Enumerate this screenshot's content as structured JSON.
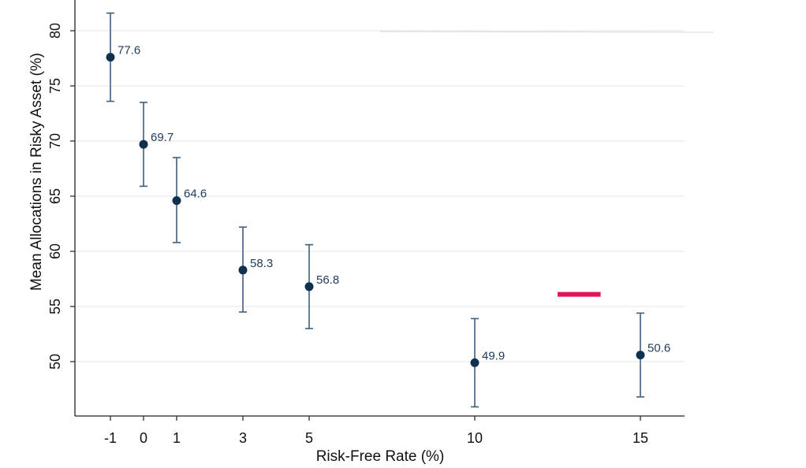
{
  "chart_data": {
    "type": "scatter",
    "title": "",
    "xlabel": "Risk-Free Rate (%)",
    "ylabel": "Mean Allocations in Risky Asset (%)",
    "x_ticks": [
      "-1",
      "0",
      "1",
      "3",
      "5",
      "10",
      "15"
    ],
    "y_ticks": [
      "50",
      "55",
      "60",
      "65",
      "70",
      "75",
      "80"
    ],
    "xlim": [
      -2.0,
      16.3
    ],
    "ylim": [
      45.0,
      82.5
    ],
    "grid": true,
    "error_bars": true,
    "points": [
      {
        "x": -1,
        "y": 77.6,
        "lo": 73.6,
        "hi": 81.6,
        "label": "77.6"
      },
      {
        "x": 0,
        "y": 69.7,
        "lo": 65.9,
        "hi": 73.5,
        "label": "69.7"
      },
      {
        "x": 1,
        "y": 64.6,
        "lo": 60.8,
        "hi": 68.5,
        "label": "64.6"
      },
      {
        "x": 3,
        "y": 58.3,
        "lo": 54.5,
        "hi": 62.2,
        "label": "58.3"
      },
      {
        "x": 5,
        "y": 56.8,
        "lo": 53.0,
        "hi": 60.6,
        "label": "56.8"
      },
      {
        "x": 10,
        "y": 49.9,
        "lo": 45.9,
        "hi": 53.9,
        "label": "49.9"
      },
      {
        "x": 15,
        "y": 50.6,
        "lo": 46.8,
        "hi": 54.4,
        "label": "50.6"
      }
    ],
    "annotation_mark": {
      "x_from": 12.5,
      "x_to": 13.8,
      "y": 56.1
    },
    "colors": {
      "marker": "#10304f",
      "error_bar": "#3d5f7c",
      "data_label": "#1f3b5a",
      "grid": "#e6e6e6",
      "axis": "#222222",
      "annotation_mark": "#e0155a"
    }
  }
}
